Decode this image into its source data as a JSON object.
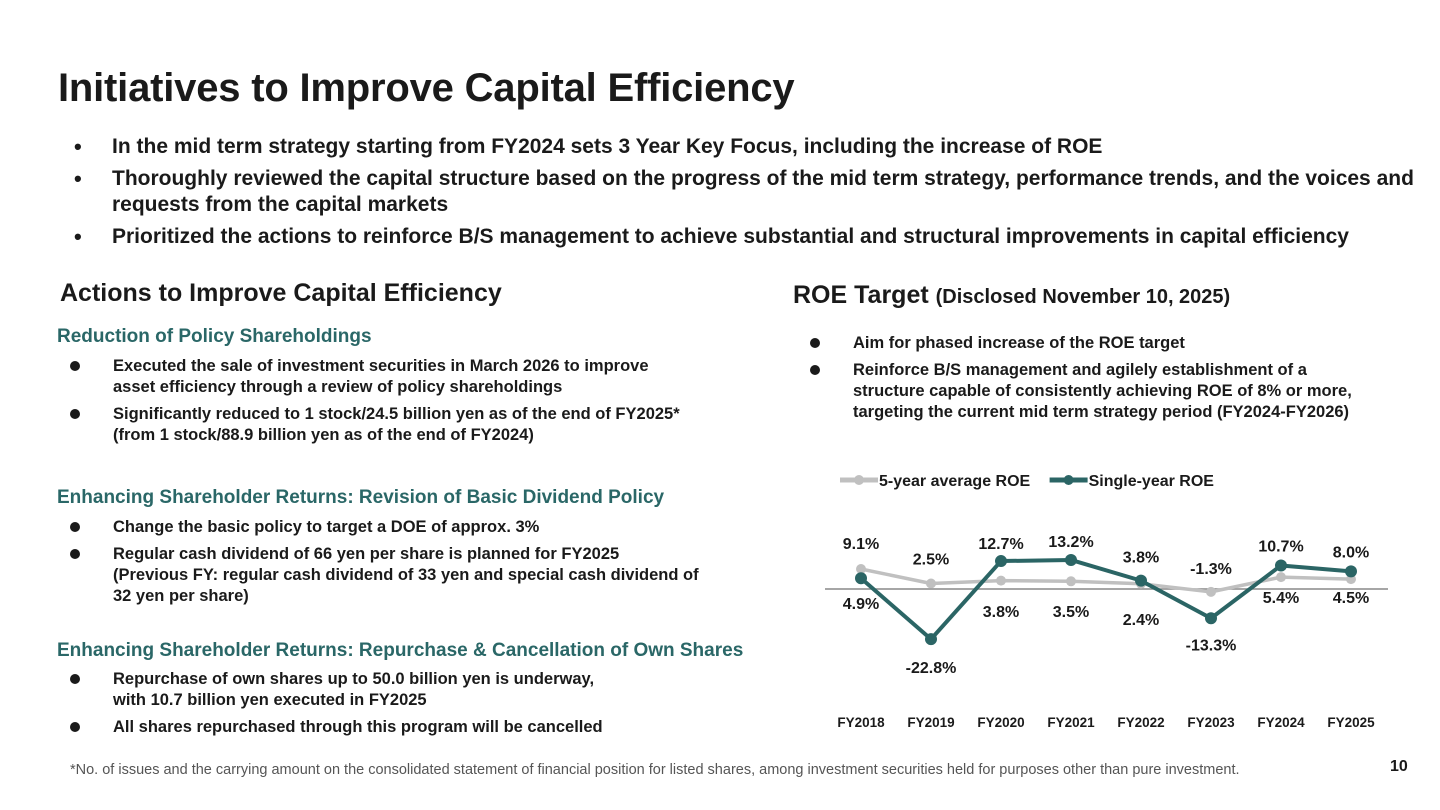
{
  "title": "Initiatives to Improve Capital Efficiency",
  "top_bullets": [
    "In the mid term strategy starting from FY2024 sets 3 Year Key Focus, including the increase of ROE",
    "Thoroughly reviewed the capital structure based on the progress of the mid term strategy, performance trends, and the voices and requests from the capital markets",
    "Prioritized the actions to reinforce B/S management to achieve substantial and structural improvements in capital efficiency"
  ],
  "left": {
    "heading": "Actions to Improve Capital Efficiency",
    "groups": [
      {
        "heading": "Reduction of Policy Shareholdings",
        "items": [
          "Executed the sale of investment securities in March 2026 to improve\nasset efficiency through a review of policy shareholdings",
          "Significantly reduced to 1 stock/24.5 billion yen as of the end of FY2025*\n (from 1 stock/88.9 billion yen as of the end of FY2024)"
        ]
      },
      {
        "heading": "Enhancing Shareholder Returns: Revision of Basic Dividend Policy",
        "items": [
          "Change the basic policy to target a DOE of approx. 3%",
          "Regular cash dividend of 66 yen per share is planned for FY2025\n(Previous FY: regular cash dividend of 33 yen and special cash dividend of\n 32 yen per share)"
        ]
      },
      {
        "heading": "Enhancing Shareholder Returns: Repurchase & Cancellation of Own Shares",
        "items": [
          "Repurchase of own shares up to 50.0 billion yen is underway,\nwith 10.7 billion yen executed in FY2025",
          "All shares repurchased through this program will be cancelled"
        ]
      }
    ]
  },
  "right": {
    "heading": "ROE Target",
    "heading_sub": "(Disclosed November 10, 2025)",
    "items": [
      "Aim for phased increase of the ROE target",
      "Reinforce B/S management and agilely establishment of a\nstructure capable of consistently achieving ROE of 8% or more,\ntargeting the current mid term strategy period (FY2024-FY2026)"
    ]
  },
  "chart_data": {
    "type": "line",
    "categories": [
      "FY2018",
      "FY2019",
      "FY2020",
      "FY2021",
      "FY2022",
      "FY2023",
      "FY2024",
      "FY2025"
    ],
    "series": [
      {
        "name": "5-year average ROE",
        "values": [
          9.1,
          2.5,
          3.8,
          3.5,
          2.4,
          -1.3,
          5.4,
          4.5
        ],
        "labels": [
          "9.1%",
          "2.5%",
          "3.8%",
          "3.5%",
          "2.4%",
          "-1.3%",
          "5.4%",
          "4.5%"
        ],
        "color": "#c0c0c0"
      },
      {
        "name": "Single-year ROE",
        "values": [
          4.9,
          -22.8,
          12.7,
          13.2,
          3.8,
          -13.3,
          10.7,
          8.0
        ],
        "labels": [
          "4.9%",
          "-22.8%",
          "12.7%",
          "13.2%",
          "3.8%",
          "-13.3%",
          "10.7%",
          "8.0%"
        ],
        "color": "#2b6565"
      }
    ],
    "legend_position": "top-left",
    "grid": false
  },
  "footnote": "*No. of issues and the carrying amount on the consolidated statement of financial position for listed shares, among investment securities held for purposes other than pure investment.",
  "page_number": "10"
}
